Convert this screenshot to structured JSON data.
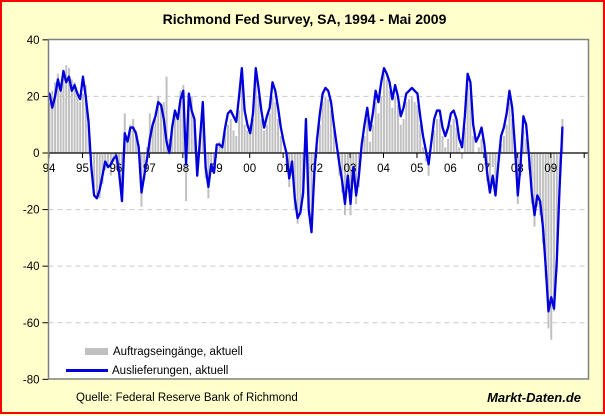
{
  "title": "Richmond Fed Survey, SA, 1994 - Mai 2009",
  "footer": {
    "source": "Quelle: Federal Reserve Bank of Richmond",
    "watermark": "Markt-Daten.de"
  },
  "colors": {
    "background": "#ffffcc",
    "plot_bg": "#ffffff",
    "border": "#ff0000",
    "bar": "#c0c0c0",
    "line": "#0000dd",
    "grid": "#c9c9c9",
    "frame": "#808080",
    "axis": "#000000"
  },
  "chart_data": {
    "type": "bar",
    "title": "Richmond Fed Survey, SA, 1994 - Mai 2009",
    "xlabel": "",
    "ylabel": "",
    "ylim": [
      -80,
      40
    ],
    "y_ticks": [
      40,
      20,
      0,
      -20,
      -40,
      -60,
      -80
    ],
    "grid_values": [
      20,
      -20,
      -40,
      -60
    ],
    "legend_position": "bottom-left-inside",
    "x_start": "1994-01",
    "x_end": "2009-05",
    "x_tick_labels": [
      "94",
      "95",
      "96",
      "97",
      "98",
      "99",
      "00",
      "01",
      "02",
      "03",
      "04",
      "05",
      "06",
      "07",
      "08",
      "09"
    ],
    "series": [
      {
        "name": "Auftragseingänge, aktuell",
        "type": "bar",
        "color": "#c0c0c0",
        "values": [
          18,
          22,
          25,
          28,
          24,
          27,
          31,
          30,
          26,
          25,
          22,
          18,
          21,
          24,
          12,
          -2,
          -12,
          -15,
          -16,
          -11,
          -6,
          -4,
          -8,
          -3,
          -5,
          -9,
          -17,
          14,
          6,
          10,
          12,
          8,
          3,
          -19,
          -9,
          2,
          14,
          10,
          12,
          20,
          16,
          18,
          27,
          5,
          10,
          14,
          12,
          22,
          24,
          -17,
          18,
          20,
          10,
          -6,
          6,
          11,
          -9,
          -16,
          -4,
          -6,
          2,
          4,
          2,
          7,
          10,
          12,
          8,
          6,
          15,
          28,
          10,
          8,
          10,
          12,
          28,
          20,
          12,
          8,
          10,
          14,
          20,
          18,
          12,
          6,
          0,
          -4,
          -12,
          -8,
          -20,
          -25,
          -22,
          -16,
          5,
          -22,
          -28,
          -10,
          2,
          10,
          18,
          20,
          19,
          15,
          8,
          0,
          -8,
          -14,
          -22,
          -10,
          -22,
          -8,
          -18,
          -12,
          0,
          6,
          12,
          4,
          10,
          18,
          14,
          20,
          28,
          26,
          22,
          16,
          20,
          17,
          10,
          12,
          18,
          19,
          20,
          18,
          17,
          10,
          2,
          -3,
          -8,
          0,
          8,
          12,
          12,
          6,
          2,
          5,
          10,
          12,
          9,
          2,
          -2,
          9,
          24,
          21,
          6,
          0,
          2,
          5,
          0,
          -10,
          -12,
          -5,
          -12,
          -2,
          3,
          6,
          10,
          18,
          12,
          -2,
          -18,
          -8,
          8,
          5,
          -6,
          -18,
          -26,
          -19,
          -22,
          -32,
          -44,
          -62,
          -66,
          -56,
          -42,
          -14,
          12
        ]
      },
      {
        "name": "Auslieferungen, aktuell",
        "type": "line",
        "color": "#0000dd",
        "values": [
          21,
          16,
          20,
          26,
          22,
          29,
          25,
          27,
          22,
          24,
          21,
          19,
          27,
          20,
          11,
          -5,
          -15,
          -16,
          -13,
          -8,
          -3,
          -5,
          -4,
          -2,
          -1,
          -7,
          -17,
          7,
          4,
          9,
          9,
          7,
          2,
          -14,
          -8,
          -2,
          5,
          10,
          13,
          18,
          17,
          12,
          4,
          0,
          9,
          15,
          12,
          19,
          22,
          -4,
          21,
          15,
          12,
          -8,
          5,
          18,
          -5,
          -12,
          -4,
          -7,
          3,
          3,
          2,
          9,
          14,
          15,
          13,
          11,
          20,
          30,
          15,
          10,
          7,
          14,
          30,
          23,
          15,
          9,
          13,
          16,
          25,
          22,
          16,
          9,
          4,
          0,
          -9,
          -3,
          -16,
          -23,
          -21,
          -14,
          12,
          -20,
          -28,
          -7,
          5,
          14,
          21,
          23,
          22,
          18,
          10,
          3,
          -4,
          -10,
          -18,
          -8,
          -18,
          -5,
          -15,
          -8,
          3,
          10,
          16,
          8,
          14,
          22,
          18,
          25,
          30,
          28,
          25,
          19,
          24,
          20,
          13,
          16,
          21,
          22,
          23,
          22,
          21,
          13,
          6,
          1,
          -4,
          4,
          12,
          15,
          15,
          9,
          6,
          9,
          14,
          15,
          12,
          5,
          2,
          13,
          28,
          25,
          10,
          4,
          6,
          9,
          3,
          -7,
          -14,
          -8,
          -15,
          -4,
          6,
          9,
          14,
          22,
          16,
          2,
          -15,
          -4,
          13,
          10,
          -1,
          -14,
          -22,
          -15,
          -17,
          -26,
          -40,
          -56,
          -51,
          -55,
          -38,
          -12,
          9
        ]
      }
    ]
  }
}
